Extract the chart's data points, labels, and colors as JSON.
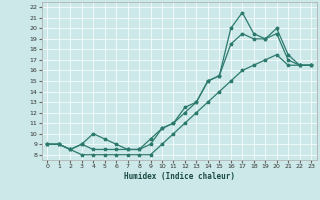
{
  "xlabel": "Humidex (Indice chaleur)",
  "bg_color": "#cce8e8",
  "grid_color": "#ffffff",
  "line_color": "#2d7a6e",
  "xlim": [
    -0.5,
    23.5
  ],
  "ylim": [
    7.5,
    22.5
  ],
  "xticks": [
    0,
    1,
    2,
    3,
    4,
    5,
    6,
    7,
    8,
    9,
    10,
    11,
    12,
    13,
    14,
    15,
    16,
    17,
    18,
    19,
    20,
    21,
    22,
    23
  ],
  "yticks": [
    8,
    9,
    10,
    11,
    12,
    13,
    14,
    15,
    16,
    17,
    18,
    19,
    20,
    21,
    22
  ],
  "line1_x": [
    0,
    1,
    2,
    3,
    4,
    5,
    6,
    7,
    8,
    9,
    10,
    11,
    12,
    13,
    14,
    15,
    16,
    17,
    18,
    19,
    20,
    21,
    22,
    23
  ],
  "line1_y": [
    9,
    9,
    8.5,
    8,
    8,
    8,
    8,
    8,
    8,
    8,
    9,
    10,
    11,
    12,
    13,
    14,
    15,
    16,
    16.5,
    17,
    17.5,
    16.5,
    16.5,
    16.5
  ],
  "line2_x": [
    0,
    1,
    2,
    3,
    4,
    5,
    6,
    7,
    8,
    9,
    10,
    11,
    12,
    13,
    14,
    15,
    16,
    17,
    18,
    19,
    20,
    21,
    22,
    23
  ],
  "line2_y": [
    9,
    9,
    8.5,
    9,
    8.5,
    8.5,
    8.5,
    8.5,
    8.5,
    9,
    10.5,
    11,
    12,
    13,
    15,
    15.5,
    20,
    21.5,
    19.5,
    19,
    20,
    17.5,
    16.5,
    16.5
  ],
  "line3_x": [
    0,
    1,
    2,
    3,
    4,
    5,
    6,
    7,
    8,
    9,
    10,
    11,
    12,
    13,
    14,
    15,
    16,
    17,
    18,
    19,
    20,
    21,
    22,
    23
  ],
  "line3_y": [
    9,
    9,
    8.5,
    9,
    10,
    9.5,
    9,
    8.5,
    8.5,
    9.5,
    10.5,
    11,
    12.5,
    13,
    15,
    15.5,
    18.5,
    19.5,
    19,
    19,
    19.5,
    17,
    16.5,
    16.5
  ]
}
